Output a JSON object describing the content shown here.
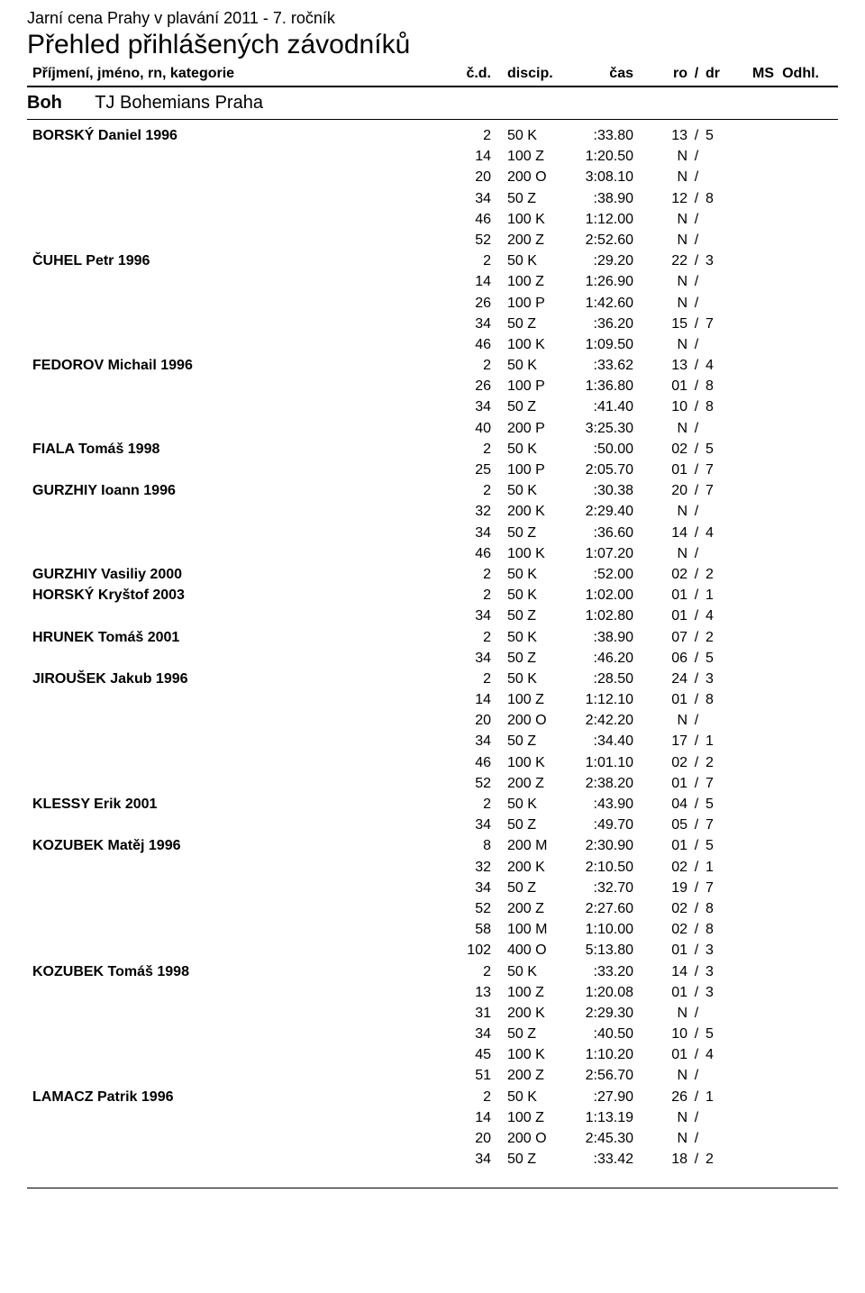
{
  "competition_title": "Jarní cena Prahy v plavání 2011 - 7. ročník",
  "page_title": "Přehled přihlášených závodníků",
  "header": {
    "name": "Příjmení, jméno, rn, kategorie",
    "cd": "č.d.",
    "disc": "discip.",
    "cas": "čas",
    "ro": "ro",
    "slash": "/",
    "dr": "dr",
    "ms": "MS",
    "odhl": "Odhl."
  },
  "club": {
    "code": "Boh",
    "name": "TJ Bohemians Praha"
  },
  "athletes": [
    {
      "name": "BORSKÝ Daniel 1996",
      "entries": [
        {
          "cd": "2",
          "disc": "50 K",
          "cas": ":33.80",
          "ro": "13",
          "dr": "5"
        },
        {
          "cd": "14",
          "disc": "100 Z",
          "cas": "1:20.50",
          "ro": "N",
          "dr": ""
        },
        {
          "cd": "20",
          "disc": "200 O",
          "cas": "3:08.10",
          "ro": "N",
          "dr": ""
        },
        {
          "cd": "34",
          "disc": "50 Z",
          "cas": ":38.90",
          "ro": "12",
          "dr": "8"
        },
        {
          "cd": "46",
          "disc": "100 K",
          "cas": "1:12.00",
          "ro": "N",
          "dr": ""
        },
        {
          "cd": "52",
          "disc": "200 Z",
          "cas": "2:52.60",
          "ro": "N",
          "dr": ""
        }
      ]
    },
    {
      "name": "ČUHEL Petr 1996",
      "entries": [
        {
          "cd": "2",
          "disc": "50 K",
          "cas": ":29.20",
          "ro": "22",
          "dr": "3"
        },
        {
          "cd": "14",
          "disc": "100 Z",
          "cas": "1:26.90",
          "ro": "N",
          "dr": ""
        },
        {
          "cd": "26",
          "disc": "100 P",
          "cas": "1:42.60",
          "ro": "N",
          "dr": ""
        },
        {
          "cd": "34",
          "disc": "50 Z",
          "cas": ":36.20",
          "ro": "15",
          "dr": "7"
        },
        {
          "cd": "46",
          "disc": "100 K",
          "cas": "1:09.50",
          "ro": "N",
          "dr": ""
        }
      ]
    },
    {
      "name": "FEDOROV Michail 1996",
      "entries": [
        {
          "cd": "2",
          "disc": "50 K",
          "cas": ":33.62",
          "ro": "13",
          "dr": "4"
        },
        {
          "cd": "26",
          "disc": "100 P",
          "cas": "1:36.80",
          "ro": "01",
          "dr": "8"
        },
        {
          "cd": "34",
          "disc": "50 Z",
          "cas": ":41.40",
          "ro": "10",
          "dr": "8"
        },
        {
          "cd": "40",
          "disc": "200 P",
          "cas": "3:25.30",
          "ro": "N",
          "dr": ""
        }
      ]
    },
    {
      "name": "FIALA Tomáš 1998",
      "entries": [
        {
          "cd": "2",
          "disc": "50 K",
          "cas": ":50.00",
          "ro": "02",
          "dr": "5"
        },
        {
          "cd": "25",
          "disc": "100 P",
          "cas": "2:05.70",
          "ro": "01",
          "dr": "7"
        }
      ]
    },
    {
      "name": "GURZHIY Ioann 1996",
      "entries": [
        {
          "cd": "2",
          "disc": "50 K",
          "cas": ":30.38",
          "ro": "20",
          "dr": "7"
        },
        {
          "cd": "32",
          "disc": "200 K",
          "cas": "2:29.40",
          "ro": "N",
          "dr": ""
        },
        {
          "cd": "34",
          "disc": "50 Z",
          "cas": ":36.60",
          "ro": "14",
          "dr": "4"
        },
        {
          "cd": "46",
          "disc": "100 K",
          "cas": "1:07.20",
          "ro": "N",
          "dr": ""
        }
      ]
    },
    {
      "name": "GURZHIY Vasiliy 2000",
      "entries": [
        {
          "cd": "2",
          "disc": "50 K",
          "cas": ":52.00",
          "ro": "02",
          "dr": "2"
        }
      ]
    },
    {
      "name": "HORSKÝ Kryštof 2003",
      "entries": [
        {
          "cd": "2",
          "disc": "50 K",
          "cas": "1:02.00",
          "ro": "01",
          "dr": "1"
        },
        {
          "cd": "34",
          "disc": "50 Z",
          "cas": "1:02.80",
          "ro": "01",
          "dr": "4"
        }
      ]
    },
    {
      "name": "HRUNEK Tomáš 2001",
      "entries": [
        {
          "cd": "2",
          "disc": "50 K",
          "cas": ":38.90",
          "ro": "07",
          "dr": "2"
        },
        {
          "cd": "34",
          "disc": "50 Z",
          "cas": ":46.20",
          "ro": "06",
          "dr": "5"
        }
      ]
    },
    {
      "name": "JIROUŠEK Jakub 1996",
      "entries": [
        {
          "cd": "2",
          "disc": "50 K",
          "cas": ":28.50",
          "ro": "24",
          "dr": "3"
        },
        {
          "cd": "14",
          "disc": "100 Z",
          "cas": "1:12.10",
          "ro": "01",
          "dr": "8"
        },
        {
          "cd": "20",
          "disc": "200 O",
          "cas": "2:42.20",
          "ro": "N",
          "dr": ""
        },
        {
          "cd": "34",
          "disc": "50 Z",
          "cas": ":34.40",
          "ro": "17",
          "dr": "1"
        },
        {
          "cd": "46",
          "disc": "100 K",
          "cas": "1:01.10",
          "ro": "02",
          "dr": "2"
        },
        {
          "cd": "52",
          "disc": "200 Z",
          "cas": "2:38.20",
          "ro": "01",
          "dr": "7"
        }
      ]
    },
    {
      "name": "KLESSY Erik 2001",
      "entries": [
        {
          "cd": "2",
          "disc": "50 K",
          "cas": ":43.90",
          "ro": "04",
          "dr": "5"
        },
        {
          "cd": "34",
          "disc": "50 Z",
          "cas": ":49.70",
          "ro": "05",
          "dr": "7"
        }
      ]
    },
    {
      "name": "KOZUBEK Matěj 1996",
      "entries": [
        {
          "cd": "8",
          "disc": "200 M",
          "cas": "2:30.90",
          "ro": "01",
          "dr": "5"
        },
        {
          "cd": "32",
          "disc": "200 K",
          "cas": "2:10.50",
          "ro": "02",
          "dr": "1"
        },
        {
          "cd": "34",
          "disc": "50 Z",
          "cas": ":32.70",
          "ro": "19",
          "dr": "7"
        },
        {
          "cd": "52",
          "disc": "200 Z",
          "cas": "2:27.60",
          "ro": "02",
          "dr": "8"
        },
        {
          "cd": "58",
          "disc": "100 M",
          "cas": "1:10.00",
          "ro": "02",
          "dr": "8"
        },
        {
          "cd": "102",
          "disc": "400 O",
          "cas": "5:13.80",
          "ro": "01",
          "dr": "3"
        }
      ]
    },
    {
      "name": "KOZUBEK Tomáš 1998",
      "entries": [
        {
          "cd": "2",
          "disc": "50 K",
          "cas": ":33.20",
          "ro": "14",
          "dr": "3"
        },
        {
          "cd": "13",
          "disc": "100 Z",
          "cas": "1:20.08",
          "ro": "01",
          "dr": "3"
        },
        {
          "cd": "31",
          "disc": "200 K",
          "cas": "2:29.30",
          "ro": "N",
          "dr": ""
        },
        {
          "cd": "34",
          "disc": "50 Z",
          "cas": ":40.50",
          "ro": "10",
          "dr": "5"
        },
        {
          "cd": "45",
          "disc": "100 K",
          "cas": "1:10.20",
          "ro": "01",
          "dr": "4"
        },
        {
          "cd": "51",
          "disc": "200 Z",
          "cas": "2:56.70",
          "ro": "N",
          "dr": ""
        }
      ]
    },
    {
      "name": "LAMACZ Patrik 1996",
      "entries": [
        {
          "cd": "2",
          "disc": "50 K",
          "cas": ":27.90",
          "ro": "26",
          "dr": "1"
        },
        {
          "cd": "14",
          "disc": "100 Z",
          "cas": "1:13.19",
          "ro": "N",
          "dr": ""
        },
        {
          "cd": "20",
          "disc": "200 O",
          "cas": "2:45.30",
          "ro": "N",
          "dr": ""
        },
        {
          "cd": "34",
          "disc": "50 Z",
          "cas": ":33.42",
          "ro": "18",
          "dr": "2"
        }
      ]
    }
  ]
}
